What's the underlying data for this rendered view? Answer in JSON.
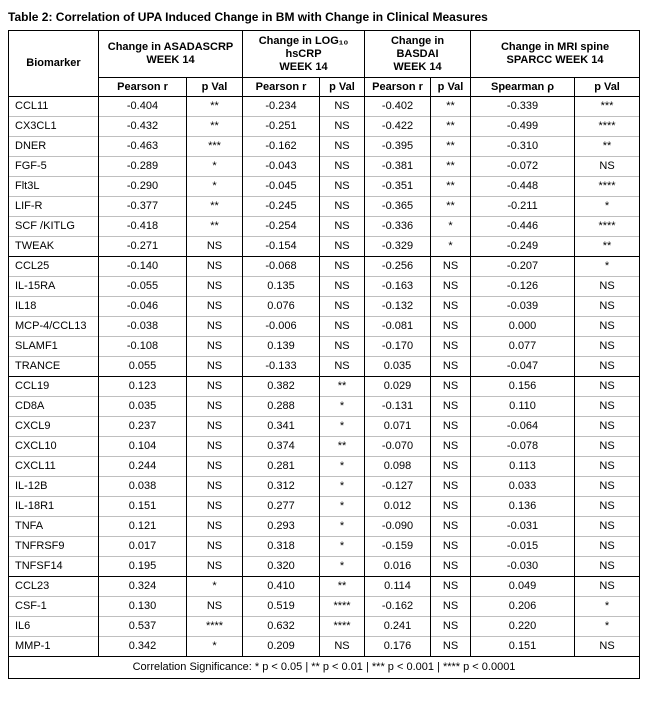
{
  "title": "Table 2: Correlation of UPA Induced Change in BM with Change in Clinical Measures",
  "table": {
    "biomarker_header": "Biomarker",
    "column_groups": [
      {
        "label": "Change in ASADASCRP\nWEEK 14",
        "subheaders": [
          "Pearson r",
          "p Val"
        ]
      },
      {
        "label": "Change in LOG₁₀\nhsCRP\nWEEK 14",
        "subheaders": [
          "Pearson r",
          "p Val"
        ]
      },
      {
        "label": "Change in\nBASDAI\nWEEK 14",
        "subheaders": [
          "Pearson r",
          "p Val"
        ]
      },
      {
        "label": "Change in MRI spine\nSPARCC WEEK 14",
        "subheaders": [
          "Spearman ρ",
          "p Val"
        ]
      }
    ],
    "groups": [
      {
        "rows": [
          {
            "name": "CCL11",
            "values": [
              "-0.404",
              "**",
              "-0.234",
              "NS",
              "-0.402",
              "**",
              "-0.339",
              "***"
            ]
          },
          {
            "name": "CX3CL1",
            "values": [
              "-0.432",
              "**",
              "-0.251",
              "NS",
              "-0.422",
              "**",
              "-0.499",
              "****"
            ]
          },
          {
            "name": "DNER",
            "values": [
              "-0.463",
              "***",
              "-0.162",
              "NS",
              "-0.395",
              "**",
              "-0.310",
              "**"
            ]
          },
          {
            "name": "FGF-5",
            "values": [
              "-0.289",
              "*",
              "-0.043",
              "NS",
              "-0.381",
              "**",
              "-0.072",
              "NS"
            ]
          },
          {
            "name": "Flt3L",
            "values": [
              "-0.290",
              "*",
              "-0.045",
              "NS",
              "-0.351",
              "**",
              "-0.448",
              "****"
            ]
          },
          {
            "name": "LIF-R",
            "values": [
              "-0.377",
              "**",
              "-0.245",
              "NS",
              "-0.365",
              "**",
              "-0.211",
              "*"
            ]
          },
          {
            "name": "SCF /KITLG",
            "values": [
              "-0.418",
              "**",
              "-0.254",
              "NS",
              "-0.336",
              "*",
              "-0.446",
              "****"
            ]
          },
          {
            "name": "TWEAK",
            "values": [
              "-0.271",
              "NS",
              "-0.154",
              "NS",
              "-0.329",
              "*",
              "-0.249",
              "**"
            ]
          }
        ]
      },
      {
        "rows": [
          {
            "name": "CCL25",
            "values": [
              "-0.140",
              "NS",
              "-0.068",
              "NS",
              "-0.256",
              "NS",
              "-0.207",
              "*"
            ]
          },
          {
            "name": "IL-15RA",
            "values": [
              "-0.055",
              "NS",
              "0.135",
              "NS",
              "-0.163",
              "NS",
              "-0.126",
              "NS"
            ]
          },
          {
            "name": "IL18",
            "values": [
              "-0.046",
              "NS",
              "0.076",
              "NS",
              "-0.132",
              "NS",
              "-0.039",
              "NS"
            ]
          },
          {
            "name": "MCP-4/CCL13",
            "values": [
              "-0.038",
              "NS",
              "-0.006",
              "NS",
              "-0.081",
              "NS",
              "0.000",
              "NS"
            ]
          },
          {
            "name": "SLAMF1",
            "values": [
              "-0.108",
              "NS",
              "0.139",
              "NS",
              "-0.170",
              "NS",
              "0.077",
              "NS"
            ]
          },
          {
            "name": "TRANCE",
            "values": [
              "0.055",
              "NS",
              "-0.133",
              "NS",
              "0.035",
              "NS",
              "-0.047",
              "NS"
            ]
          }
        ]
      },
      {
        "rows": [
          {
            "name": "CCL19",
            "values": [
              "0.123",
              "NS",
              "0.382",
              "**",
              "0.029",
              "NS",
              "0.156",
              "NS"
            ]
          },
          {
            "name": "CD8A",
            "values": [
              "0.035",
              "NS",
              "0.288",
              "*",
              "-0.131",
              "NS",
              "0.110",
              "NS"
            ]
          },
          {
            "name": "CXCL9",
            "values": [
              "0.237",
              "NS",
              "0.341",
              "*",
              "0.071",
              "NS",
              "-0.064",
              "NS"
            ]
          },
          {
            "name": "CXCL10",
            "values": [
              "0.104",
              "NS",
              "0.374",
              "**",
              "-0.070",
              "NS",
              "-0.078",
              "NS"
            ]
          },
          {
            "name": "CXCL11",
            "values": [
              "0.244",
              "NS",
              "0.281",
              "*",
              "0.098",
              "NS",
              "0.113",
              "NS"
            ]
          },
          {
            "name": "IL-12B",
            "values": [
              "0.038",
              "NS",
              "0.312",
              "*",
              "-0.127",
              "NS",
              "0.033",
              "NS"
            ]
          },
          {
            "name": "IL-18R1",
            "values": [
              "0.151",
              "NS",
              "0.277",
              "*",
              "0.012",
              "NS",
              "0.136",
              "NS"
            ]
          },
          {
            "name": "TNFA",
            "values": [
              "0.121",
              "NS",
              "0.293",
              "*",
              "-0.090",
              "NS",
              "-0.031",
              "NS"
            ]
          },
          {
            "name": "TNFRSF9",
            "values": [
              "0.017",
              "NS",
              "0.318",
              "*",
              "-0.159",
              "NS",
              "-0.015",
              "NS"
            ]
          },
          {
            "name": "TNFSF14",
            "values": [
              "0.195",
              "NS",
              "0.320",
              "*",
              "0.016",
              "NS",
              "-0.030",
              "NS"
            ]
          }
        ]
      },
      {
        "rows": [
          {
            "name": "CCL23",
            "values": [
              "0.324",
              "*",
              "0.410",
              "**",
              "0.114",
              "NS",
              "0.049",
              "NS"
            ]
          },
          {
            "name": "CSF-1",
            "values": [
              "0.130",
              "NS",
              "0.519",
              "****",
              "-0.162",
              "NS",
              "0.206",
              "*"
            ]
          },
          {
            "name": "IL6",
            "values": [
              "0.537",
              "****",
              "0.632",
              "****",
              "0.241",
              "NS",
              "0.220",
              "*"
            ]
          },
          {
            "name": "MMP-1",
            "values": [
              "0.342",
              "*",
              "0.209",
              "NS",
              "0.176",
              "NS",
              "0.151",
              "NS"
            ]
          }
        ]
      }
    ],
    "footer": "Correlation Significance: * p < 0.05 | ** p < 0.01 | *** p < 0.001 | **** p < 0.0001"
  }
}
